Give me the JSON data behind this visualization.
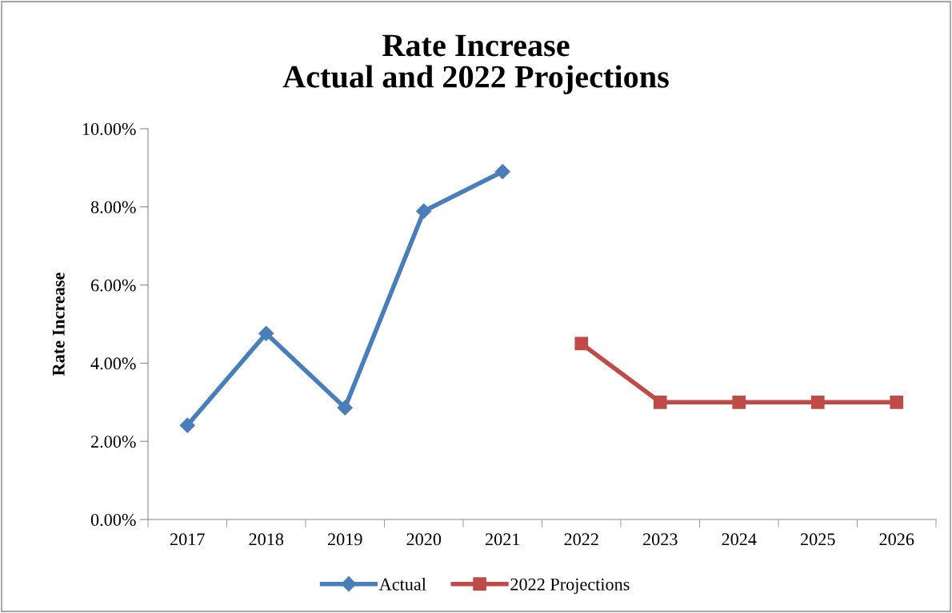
{
  "chart_data": {
    "type": "line",
    "title": "Rate Increase\nActual and 2022 Projections",
    "ylabel": "Rate Increase",
    "categories": [
      "2017",
      "2018",
      "2019",
      "2020",
      "2021",
      "2022",
      "2023",
      "2024",
      "2025",
      "2026"
    ],
    "series": [
      {
        "name": "Actual",
        "color": "#4a7ebb",
        "marker": "diamond",
        "values": [
          2.41,
          4.76,
          2.86,
          7.89,
          8.9,
          null,
          null,
          null,
          null,
          null
        ]
      },
      {
        "name": "2022 Projections",
        "color": "#be4b48",
        "marker": "square",
        "values": [
          null,
          null,
          null,
          null,
          null,
          4.5,
          3.0,
          3.0,
          3.0,
          3.0
        ]
      }
    ],
    "ylim": [
      0,
      10
    ],
    "yticks": [
      {
        "value": 0,
        "label": "0.00%"
      },
      {
        "value": 2,
        "label": "2.00%"
      },
      {
        "value": 4,
        "label": "4.00%"
      },
      {
        "value": 6,
        "label": "6.00%"
      },
      {
        "value": 8,
        "label": "8.00%"
      },
      {
        "value": 10,
        "label": "10.00%"
      }
    ],
    "grid": false,
    "legend": "bottom",
    "line_style": "solid"
  }
}
